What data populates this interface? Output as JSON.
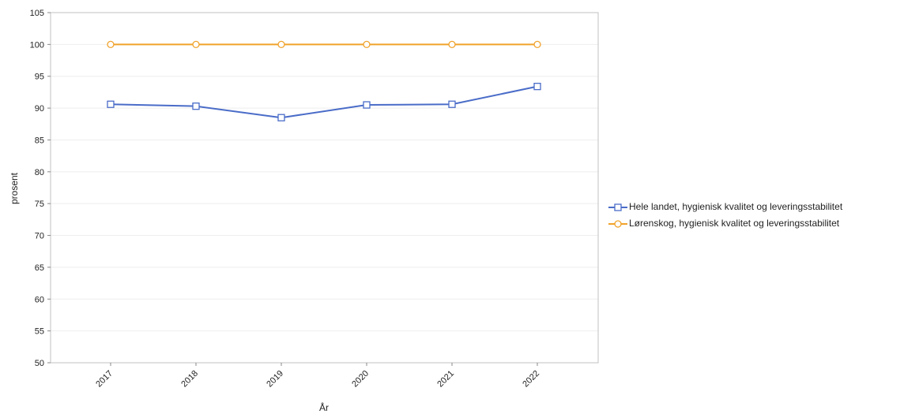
{
  "chart_data": {
    "type": "line",
    "title": "",
    "xlabel": "År",
    "ylabel": "prosent",
    "categories": [
      "2017",
      "2018",
      "2019",
      "2020",
      "2021",
      "2022"
    ],
    "ylim": [
      50,
      105
    ],
    "yticks": [
      50,
      55,
      60,
      65,
      70,
      75,
      80,
      85,
      90,
      95,
      100,
      105
    ],
    "grid": true,
    "legend_position": "right",
    "series": [
      {
        "name": "Hele landet, hygienisk kvalitet og leveringsstabilitet",
        "values": [
          90.6,
          90.3,
          88.5,
          90.5,
          90.6,
          93.4
        ],
        "color": "#4a6cc8",
        "marker": "square"
      },
      {
        "name": "Lørenskog, hygienisk kvalitet og leveringsstabilitet",
        "values": [
          100,
          100,
          100,
          100,
          100,
          100
        ],
        "color": "#f0a22a",
        "marker": "circle"
      }
    ]
  }
}
